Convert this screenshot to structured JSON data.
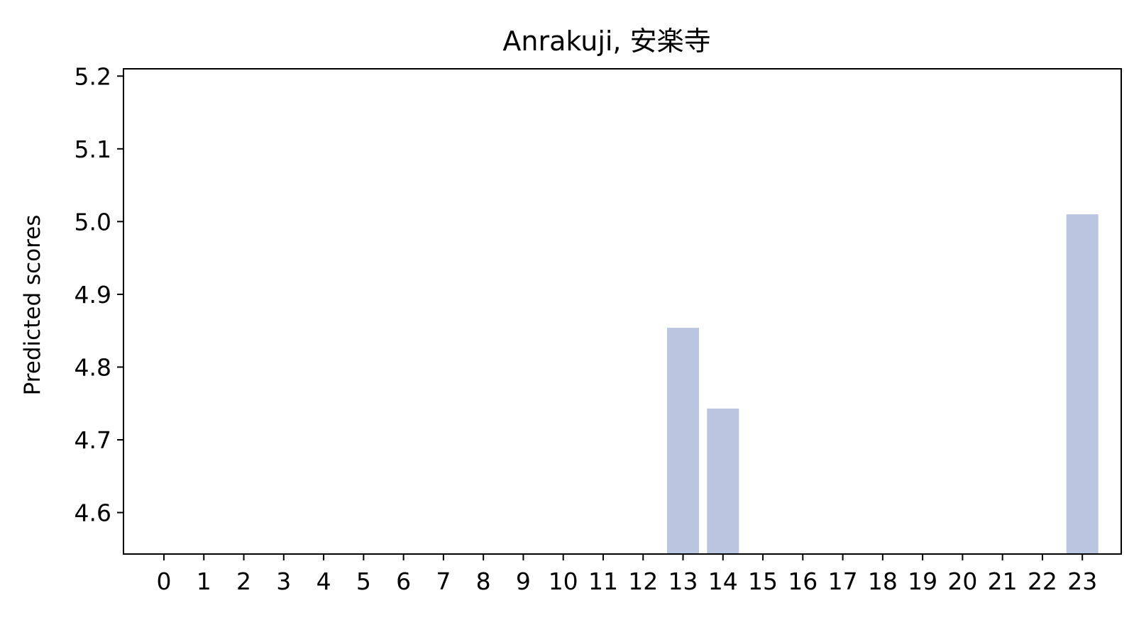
{
  "chart_data": {
    "type": "bar",
    "title": "Anrakuji, 安楽寺",
    "xlabel": "",
    "ylabel": "Predicted scores",
    "categories": [
      "0",
      "1",
      "2",
      "3",
      "4",
      "5",
      "6",
      "7",
      "8",
      "9",
      "10",
      "11",
      "12",
      "13",
      "14",
      "15",
      "16",
      "17",
      "18",
      "19",
      "20",
      "21",
      "22",
      "23"
    ],
    "values": [
      null,
      null,
      null,
      null,
      null,
      null,
      null,
      null,
      null,
      null,
      null,
      null,
      null,
      4.854,
      4.743,
      null,
      null,
      null,
      null,
      null,
      null,
      null,
      null,
      5.01
    ],
    "ylim": [
      4.543,
      5.21
    ],
    "yticks": [
      "4.6",
      "4.7",
      "4.8",
      "4.9",
      "5.0",
      "5.1",
      "5.2"
    ],
    "ytick_values": [
      4.6,
      4.7,
      4.8,
      4.9,
      5.0,
      5.1,
      5.2
    ],
    "bar_color": "#bac6e0",
    "grid": false,
    "legend": "none"
  }
}
